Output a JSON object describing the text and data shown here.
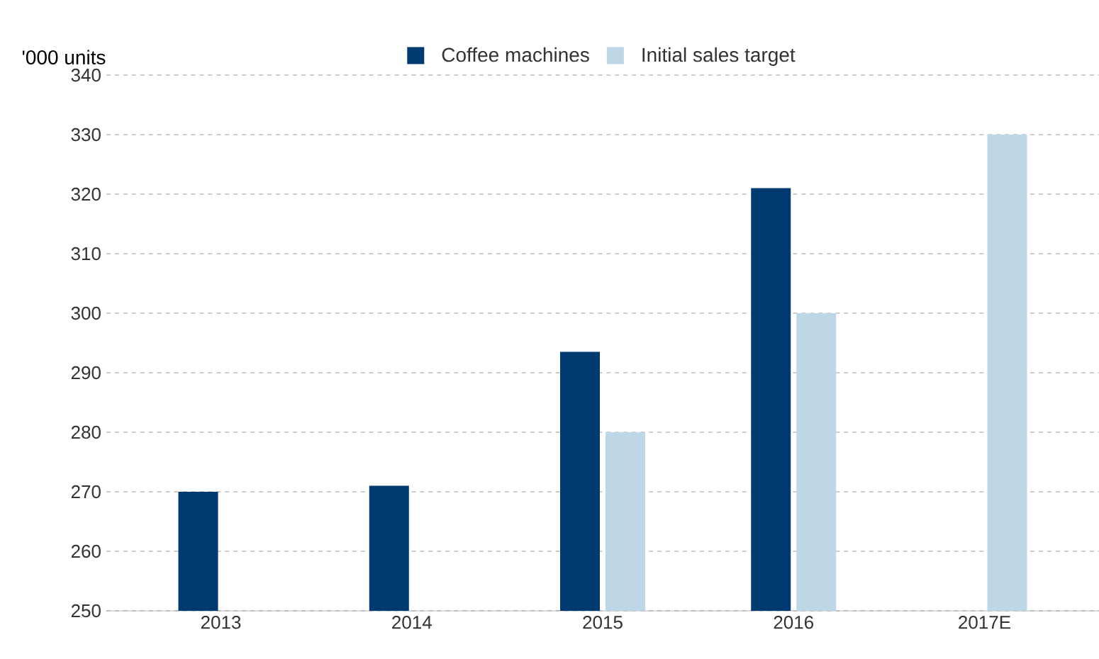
{
  "chart_data": {
    "type": "bar",
    "ylabel": "'000 units",
    "categories": [
      "2013",
      "2014",
      "2015",
      "2016",
      "2017E"
    ],
    "series": [
      {
        "name": "Coffee machines",
        "color": "#003a70",
        "values": [
          270,
          271,
          293.5,
          321,
          null
        ]
      },
      {
        "name": "Initial sales target",
        "color": "#bdd7e7",
        "values": [
          null,
          null,
          280,
          300,
          330
        ]
      }
    ],
    "ylim": [
      250,
      340
    ],
    "yticks": [
      250,
      260,
      270,
      280,
      290,
      300,
      310,
      320,
      330,
      340
    ],
    "grid": "y",
    "legend": "top"
  }
}
